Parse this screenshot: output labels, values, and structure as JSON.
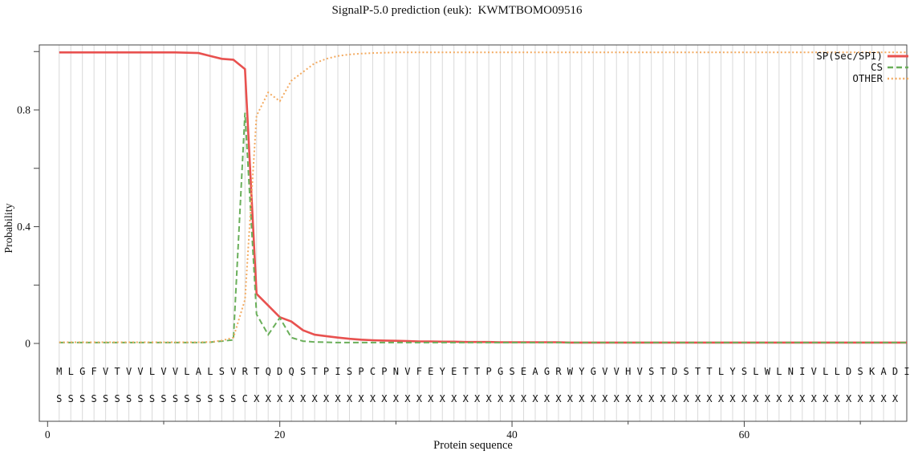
{
  "title": "SignalP-5.0 prediction (euk):  KWMTBOMO09516",
  "legend": [
    {
      "label": "SP(Sec/SPI)",
      "color": "#e8514f",
      "dash": "",
      "width": 2.6
    },
    {
      "label": "CS",
      "color": "#6aaf5a",
      "dash": "7,4",
      "width": 2
    },
    {
      "label": "OTHER",
      "color": "#f3aa60",
      "dash": "2,2.8",
      "width": 2
    }
  ],
  "axes": {
    "ylabel": "Probability",
    "xlabel": "Protein sequence",
    "yticks": [
      {
        "v": 0,
        "label": "0"
      },
      {
        "v": 0.2,
        "label": ""
      },
      {
        "v": 0.4,
        "label": "0.4"
      },
      {
        "v": 0.6,
        "label": ""
      },
      {
        "v": 0.8,
        "label": "0.8"
      },
      {
        "v": 1.0,
        "label": ""
      }
    ],
    "xticks": [
      {
        "v": 0,
        "label": "0"
      },
      {
        "v": 10,
        "label": ""
      },
      {
        "v": 20,
        "label": "20"
      },
      {
        "v": 30,
        "label": ""
      },
      {
        "v": 40,
        "label": "40"
      },
      {
        "v": 50,
        "label": ""
      },
      {
        "v": 60,
        "label": "60"
      },
      {
        "v": 70,
        "label": ""
      }
    ]
  },
  "sequence": "MLGFVTVVLVVLALSVRTQDQSTPISPCPNVFEYETTPGSEAGRWYGVVHVSTDSTTLYSLWLNIVLLDSKADI",
  "marks": "SSSSSSSSSSSSSSSSCXXXXXXXXXXXXXXXXXXXXXXXXXXXXXXXXXXXXXXXXXXXXXXXXXXXXXXXX",
  "chart_data": {
    "type": "line",
    "title": "SignalP-5.0 prediction (euk):  KWMTBOMO09516",
    "xlabel": "Protein sequence",
    "ylabel": "Probability",
    "xlim": [
      0,
      74
    ],
    "ylim": [
      0,
      1.03
    ],
    "grid": "vertical-per-residue",
    "legend_position": "top-right-inside",
    "x": "residue index 1..74",
    "series": [
      {
        "name": "SP(Sec/SPI)",
        "style": "solid",
        "color": "#e8514f",
        "values": [
          0.997,
          0.997,
          0.997,
          0.997,
          0.997,
          0.997,
          0.997,
          0.997,
          0.997,
          0.997,
          0.997,
          0.996,
          0.995,
          0.985,
          0.975,
          0.972,
          0.94,
          0.17,
          0.13,
          0.09,
          0.075,
          0.045,
          0.03,
          0.025,
          0.02,
          0.016,
          0.013,
          0.011,
          0.01,
          0.009,
          0.008,
          0.007,
          0.007,
          0.006,
          0.006,
          0.005,
          0.005,
          0.005,
          0.004,
          0.004,
          0.004,
          0.004,
          0.004,
          0.004,
          0.003,
          0.003,
          0.003,
          0.003,
          0.003,
          0.003,
          0.003,
          0.003,
          0.003,
          0.003,
          0.003,
          0.003,
          0.003,
          0.003,
          0.003,
          0.003,
          0.003,
          0.003,
          0.003,
          0.003,
          0.003,
          0.003,
          0.003,
          0.003,
          0.003,
          0.003,
          0.003,
          0.003,
          0.003,
          0.003
        ]
      },
      {
        "name": "CS",
        "style": "dashed",
        "color": "#6aaf5a",
        "values": [
          0.003,
          0.003,
          0.003,
          0.003,
          0.003,
          0.003,
          0.003,
          0.003,
          0.003,
          0.003,
          0.003,
          0.003,
          0.003,
          0.004,
          0.008,
          0.012,
          0.79,
          0.1,
          0.03,
          0.088,
          0.02,
          0.008,
          0.005,
          0.004,
          0.003,
          0.003,
          0.003,
          0.003,
          0.003,
          0.003,
          0.003,
          0.003,
          0.003,
          0.003,
          0.003,
          0.003,
          0.003,
          0.003,
          0.003,
          0.003,
          0.003,
          0.003,
          0.003,
          0.003,
          0.003,
          0.003,
          0.003,
          0.003,
          0.003,
          0.003,
          0.003,
          0.003,
          0.003,
          0.003,
          0.003,
          0.003,
          0.003,
          0.003,
          0.003,
          0.003,
          0.003,
          0.003,
          0.003,
          0.003,
          0.003,
          0.003,
          0.003,
          0.003,
          0.003,
          0.003,
          0.003,
          0.003,
          0.003,
          0.003
        ]
      },
      {
        "name": "OTHER",
        "style": "dotted",
        "color": "#f3aa60",
        "values": [
          0.004,
          0.004,
          0.004,
          0.004,
          0.004,
          0.004,
          0.004,
          0.004,
          0.004,
          0.004,
          0.004,
          0.004,
          0.004,
          0.005,
          0.01,
          0.02,
          0.15,
          0.78,
          0.86,
          0.83,
          0.9,
          0.93,
          0.96,
          0.975,
          0.985,
          0.99,
          0.993,
          0.995,
          0.996,
          0.997,
          0.997,
          0.997,
          0.997,
          0.997,
          0.997,
          0.997,
          0.997,
          0.997,
          0.997,
          0.997,
          0.997,
          0.997,
          0.997,
          0.997,
          0.997,
          0.997,
          0.997,
          0.997,
          0.997,
          0.997,
          0.997,
          0.997,
          0.997,
          0.997,
          0.997,
          0.997,
          0.997,
          0.997,
          0.997,
          0.997,
          0.997,
          0.997,
          0.997,
          0.997,
          0.997,
          0.997,
          0.997,
          0.997,
          0.997,
          0.997,
          0.997,
          0.997,
          0.997,
          0.997
        ]
      }
    ],
    "sequence_row": "MLGFVTVVLVVLALSVRTQDQSTPISPCPNVFEYETTPGSEAGRWYGVVHVSTDSTTLYSLWLNIVLLDSKADI",
    "marks_row": "SSSSSSSSSSSSSSSSCXXXXXXXXXXXXXXXXXXXXXXXXXXXXXXXXXXXXXXXXXXXXXXXXXXXXXXXX"
  }
}
